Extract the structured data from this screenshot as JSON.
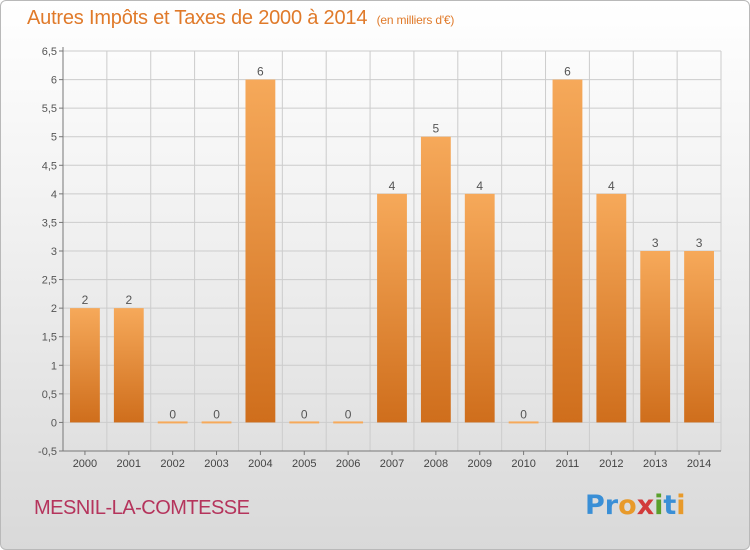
{
  "title": {
    "main": "Autres Impôts et Taxes de 2000 à 2014",
    "unit": "(en milliers d'€)"
  },
  "commune": "MESNIL-LA-COMTESSE",
  "logo": {
    "text": "Proxiti",
    "letters": [
      {
        "char": "P",
        "color": "#3a8fd6"
      },
      {
        "char": "r",
        "color": "#3a8fd6"
      },
      {
        "char": "o",
        "color": "#e89a2a"
      },
      {
        "char": "x",
        "color": "#d23a3a"
      },
      {
        "char": "i",
        "color": "#5aa02c"
      },
      {
        "char": "t",
        "color": "#3a8fd6"
      },
      {
        "char": "i",
        "color": "#e89a2a"
      }
    ]
  },
  "colors": {
    "bar_light": "#f6a95a",
    "bar_dark": "#cf6e1c",
    "title": "#e07a2a",
    "commune": "#b5345c",
    "grid": "#cccccc"
  },
  "chart_data": {
    "type": "bar",
    "categories": [
      "2000",
      "2001",
      "2002",
      "2003",
      "2004",
      "2005",
      "2006",
      "2007",
      "2008",
      "2009",
      "2010",
      "2011",
      "2012",
      "2013",
      "2014"
    ],
    "values": [
      2,
      2,
      0,
      0,
      6,
      0,
      0,
      4,
      5,
      4,
      0,
      6,
      4,
      3,
      3
    ],
    "data_labels": [
      "2",
      "2",
      "0",
      "0",
      "6",
      "0",
      "0",
      "4",
      "5",
      "4",
      "0",
      "6",
      "4",
      "3",
      "3"
    ],
    "ylim": [
      -0.5,
      6.5
    ],
    "yticks": [
      "-0,5",
      "0",
      "0,5",
      "1",
      "1,5",
      "2",
      "2,5",
      "3",
      "3,5",
      "4",
      "4,5",
      "5",
      "5,5",
      "6",
      "6,5"
    ],
    "ytick_values": [
      -0.5,
      0,
      0.5,
      1,
      1.5,
      2,
      2.5,
      3,
      3.5,
      4,
      4.5,
      5,
      5.5,
      6,
      6.5
    ],
    "grid": true,
    "xlabel": "",
    "ylabel": ""
  }
}
